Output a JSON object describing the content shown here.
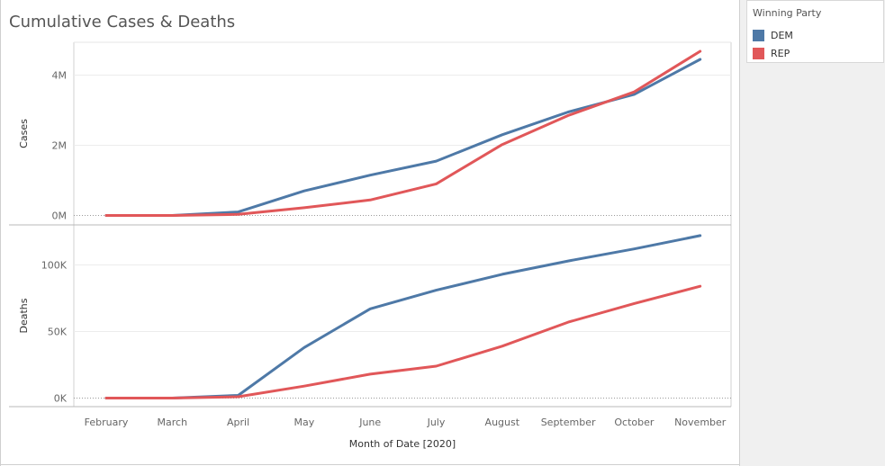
{
  "chart_data": {
    "type": "line",
    "title": "Cumulative Cases & Deaths",
    "xlabel": "Month of Date [2020]",
    "categories": [
      "February",
      "March",
      "April",
      "May",
      "June",
      "July",
      "August",
      "September",
      "October",
      "November"
    ],
    "legend": {
      "title": "Winning Party",
      "placement": "top-right",
      "items": [
        {
          "name": "DEM",
          "color": "#4e79a7"
        },
        {
          "name": "REP",
          "color": "#e15759"
        }
      ]
    },
    "panels": [
      {
        "ylabel": "Cases",
        "ylim": [
          0,
          4300000
        ],
        "ticks": [
          {
            "value": 0,
            "label": "0M"
          },
          {
            "value": 2000000,
            "label": "2M"
          },
          {
            "value": 4000000,
            "label": "4M"
          }
        ],
        "series": [
          {
            "name": "DEM",
            "values": [
              0,
              0,
              100000,
              700000,
              1150000,
              1550000,
              2300000,
              2950000,
              3450000,
              4450000
            ]
          },
          {
            "name": "REP",
            "values": [
              0,
              0,
              30000,
              220000,
              440000,
              900000,
              2020000,
              2850000,
              3520000,
              4680000
            ]
          }
        ]
      },
      {
        "ylabel": "Deaths",
        "ylim": [
          0,
          125000
        ],
        "ticks": [
          {
            "value": 0,
            "label": "0K"
          },
          {
            "value": 50000,
            "label": "50K"
          },
          {
            "value": 100000,
            "label": "100K"
          }
        ],
        "series": [
          {
            "name": "DEM",
            "values": [
              0,
              0,
              2000,
              38000,
              67000,
              81000,
              93000,
              103000,
              112000,
              122000
            ]
          },
          {
            "name": "REP",
            "values": [
              0,
              0,
              1000,
              9000,
              18000,
              24000,
              39000,
              57000,
              71000,
              84000
            ]
          }
        ]
      }
    ]
  }
}
